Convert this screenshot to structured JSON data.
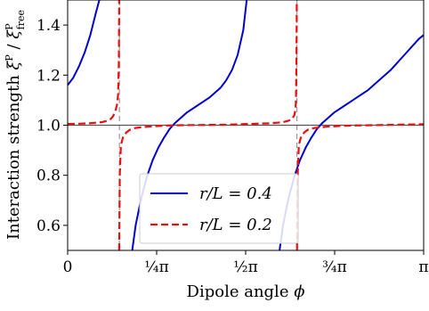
{
  "chart_data": {
    "type": "line",
    "xlabel": "Dipole angle ϕ",
    "ylabel": "Interaction strength ξᴾ / ξᴾfree",
    "xlim": [
      0,
      3.14159265
    ],
    "ylim": [
      0.5,
      1.5
    ],
    "x_ticks": [
      {
        "value": 0,
        "label": "0"
      },
      {
        "value": 0.785398,
        "label": "¼π"
      },
      {
        "value": 1.570796,
        "label": "½π"
      },
      {
        "value": 2.356194,
        "label": "¾π"
      },
      {
        "value": 3.141593,
        "label": "π"
      }
    ],
    "y_ticks": [
      {
        "value": 0.6,
        "label": "0.6"
      },
      {
        "value": 0.8,
        "label": "0.8"
      },
      {
        "value": 1.0,
        "label": "1.0"
      },
      {
        "value": 1.2,
        "label": "1.2"
      },
      {
        "value": 1.4,
        "label": "1.4"
      }
    ],
    "reference_line": {
      "y": 1.0,
      "color": "#555555"
    },
    "asymptotes_x": [
      0.457,
      2.023
    ],
    "grid": false,
    "legend_placement": "lower-center",
    "series": [
      {
        "name": "r/L = 0.4",
        "color": "#0000cc",
        "dash": "solid",
        "segments": [
          [
            [
              0.0,
              1.16
            ],
            [
              0.05,
              1.19
            ],
            [
              0.1,
              1.235
            ],
            [
              0.15,
              1.29
            ],
            [
              0.2,
              1.36
            ],
            [
              0.25,
              1.45
            ],
            [
              0.28,
              1.5
            ]
          ],
          [
            [
              0.57,
              0.5
            ],
            [
              0.6,
              0.6
            ],
            [
              0.65,
              0.71
            ],
            [
              0.7,
              0.795
            ],
            [
              0.75,
              0.86
            ],
            [
              0.8,
              0.91
            ],
            [
              0.85,
              0.95
            ],
            [
              0.9,
              0.985
            ],
            [
              0.95,
              1.01
            ],
            [
              1.0,
              1.03
            ],
            [
              1.05,
              1.05
            ],
            [
              1.1,
              1.065
            ],
            [
              1.15,
              1.08
            ],
            [
              1.2,
              1.095
            ],
            [
              1.25,
              1.11
            ],
            [
              1.3,
              1.13
            ],
            [
              1.35,
              1.15
            ],
            [
              1.4,
              1.18
            ],
            [
              1.45,
              1.22
            ],
            [
              1.5,
              1.28
            ],
            [
              1.55,
              1.38
            ],
            [
              1.58,
              1.5
            ]
          ],
          [
            [
              1.87,
              0.5
            ],
            [
              1.9,
              0.6
            ],
            [
              1.95,
              0.71
            ],
            [
              2.0,
              0.795
            ],
            [
              2.05,
              0.86
            ],
            [
              2.1,
              0.91
            ],
            [
              2.15,
              0.95
            ],
            [
              2.2,
              0.985
            ],
            [
              2.25,
              1.01
            ],
            [
              2.3,
              1.03
            ],
            [
              2.35,
              1.05
            ],
            [
              2.4,
              1.065
            ],
            [
              2.45,
              1.08
            ],
            [
              2.5,
              1.095
            ],
            [
              2.55,
              1.11
            ],
            [
              2.6,
              1.125
            ],
            [
              2.65,
              1.14
            ],
            [
              2.7,
              1.16
            ],
            [
              2.75,
              1.18
            ],
            [
              2.8,
              1.2
            ],
            [
              2.85,
              1.22
            ],
            [
              2.9,
              1.245
            ],
            [
              2.95,
              1.27
            ],
            [
              3.0,
              1.295
            ],
            [
              3.05,
              1.32
            ],
            [
              3.1,
              1.345
            ],
            [
              3.1416,
              1.36
            ]
          ]
        ]
      },
      {
        "name": "r/L = 0.2",
        "color": "#e81010",
        "dash": "dashed",
        "segments": [
          [
            [
              0.0,
              1.005
            ],
            [
              0.1,
              1.006
            ],
            [
              0.2,
              1.008
            ],
            [
              0.3,
              1.012
            ],
            [
              0.35,
              1.018
            ],
            [
              0.38,
              1.025
            ],
            [
              0.4,
              1.035
            ],
            [
              0.42,
              1.055
            ],
            [
              0.435,
              1.08
            ],
            [
              0.445,
              1.12
            ],
            [
              0.452,
              1.25
            ],
            [
              0.455,
              1.5
            ]
          ],
          [
            [
              0.455,
              0.5
            ],
            [
              0.46,
              0.8
            ],
            [
              0.47,
              0.92
            ],
            [
              0.49,
              0.955
            ],
            [
              0.52,
              0.972
            ],
            [
              0.55,
              0.982
            ],
            [
              0.6,
              0.989
            ],
            [
              0.7,
              0.994
            ],
            [
              0.8,
              0.997
            ],
            [
              0.9,
              0.999
            ],
            [
              1.0,
              1.0
            ],
            [
              1.2,
              1.001
            ],
            [
              1.4,
              1.002
            ],
            [
              1.6,
              1.005
            ],
            [
              1.8,
              1.008
            ],
            [
              1.9,
              1.012
            ],
            [
              1.95,
              1.018
            ],
            [
              1.98,
              1.025
            ],
            [
              2.0,
              1.04
            ],
            [
              2.01,
              1.06
            ],
            [
              2.015,
              1.1
            ],
            [
              2.02,
              1.3
            ],
            [
              2.022,
              1.5
            ]
          ],
          [
            [
              2.024,
              0.5
            ],
            [
              2.03,
              0.8
            ],
            [
              2.04,
              0.92
            ],
            [
              2.06,
              0.955
            ],
            [
              2.09,
              0.972
            ],
            [
              2.12,
              0.982
            ],
            [
              2.18,
              0.989
            ],
            [
              2.28,
              0.994
            ],
            [
              2.4,
              0.997
            ],
            [
              2.55,
              0.999
            ],
            [
              2.7,
              1.0
            ],
            [
              2.9,
              1.002
            ],
            [
              3.1416,
              1.004
            ]
          ]
        ]
      }
    ]
  }
}
